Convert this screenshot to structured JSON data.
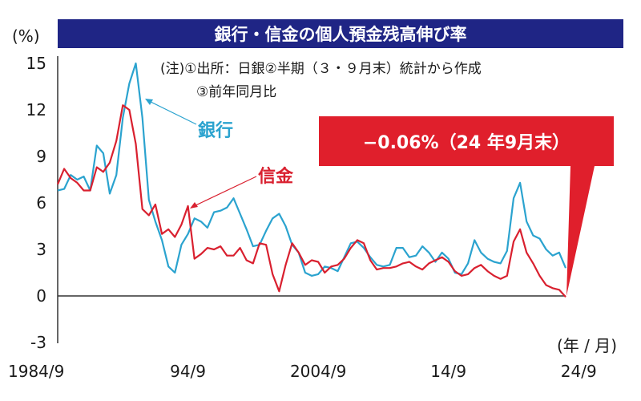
{
  "chart_data": {
    "type": "line",
    "title": "銀行・信金の個人預金残高伸び率",
    "ylabel": "(%)",
    "xlabel": "(年 / 月)",
    "ylim": [
      -3,
      15
    ],
    "yticks": [
      "15",
      "12",
      "9",
      "6",
      "3",
      "0",
      "-3"
    ],
    "xticks": [
      "1984/9",
      "94/9",
      "2004/9",
      "14/9",
      "24/9"
    ],
    "notes": [
      "(注)①出所：日銀②半期（３・９月末）統計から作成",
      "③前年同月比"
    ],
    "callout": "−0.06%（24 年9月末）",
    "x_start": "1984/9",
    "x_end": "2024/9",
    "series": [
      {
        "name": "銀行",
        "color": "#2ba3cf",
        "values": [
          6.8,
          6.9,
          7.8,
          7.5,
          7.7,
          6.8,
          9.7,
          9.2,
          6.6,
          7.8,
          11.5,
          13.7,
          15.0,
          11.5,
          6.2,
          4.8,
          3.6,
          1.9,
          1.5,
          3.3,
          4.0,
          5.0,
          4.8,
          4.4,
          5.4,
          5.5,
          5.7,
          6.3,
          5.3,
          4.3,
          3.2,
          3.3,
          4.2,
          5.0,
          5.3,
          4.5,
          3.3,
          2.8,
          1.5,
          1.3,
          1.4,
          1.9,
          1.8,
          1.6,
          2.5,
          3.4,
          3.5,
          3.1,
          2.5,
          2.0,
          1.9,
          2.0,
          3.1,
          3.1,
          2.5,
          2.6,
          3.2,
          2.8,
          2.2,
          2.8,
          2.4,
          1.5,
          1.4,
          2.1,
          3.6,
          2.8,
          2.4,
          2.2,
          2.1,
          2.9,
          6.3,
          7.3,
          4.8,
          3.9,
          3.7,
          3.0,
          2.6,
          2.8,
          1.8
        ]
      },
      {
        "name": "信金",
        "color": "#d9202f",
        "values": [
          7.2,
          8.2,
          7.6,
          7.3,
          6.8,
          6.8,
          8.3,
          8.0,
          8.6,
          10.0,
          12.3,
          12.0,
          9.8,
          5.6,
          5.2,
          5.9,
          4.0,
          4.3,
          3.8,
          4.6,
          5.8,
          2.4,
          2.7,
          3.1,
          3.0,
          3.2,
          2.6,
          2.6,
          3.1,
          2.3,
          2.1,
          3.4,
          3.3,
          1.4,
          0.3,
          2.0,
          3.4,
          2.8,
          2.0,
          2.3,
          2.2,
          1.5,
          1.9,
          2.0,
          2.4,
          3.1,
          3.6,
          3.4,
          2.3,
          1.7,
          1.8,
          1.8,
          1.9,
          2.1,
          2.2,
          1.9,
          1.7,
          2.1,
          2.3,
          2.5,
          2.2,
          1.6,
          1.3,
          1.4,
          1.8,
          2.0,
          1.6,
          1.3,
          1.1,
          1.3,
          3.5,
          4.3,
          2.8,
          2.1,
          1.3,
          0.7,
          0.5,
          0.4,
          -0.06
        ]
      }
    ]
  }
}
